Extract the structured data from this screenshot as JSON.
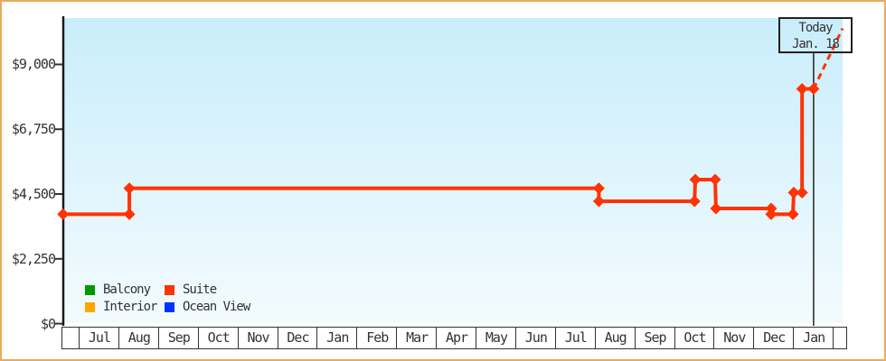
{
  "today_box": {
    "line1": "Today",
    "line2": "Jan. 18"
  },
  "legend": {
    "items": [
      {
        "label": "Balcony",
        "color": "#009900"
      },
      {
        "label": "Suite",
        "color": "#ff3300"
      },
      {
        "label": "Interior",
        "color": "#ffa500"
      },
      {
        "label": "Ocean View",
        "color": "#0033ff"
      }
    ]
  },
  "colors": {
    "frame_border": "#ebaa5c",
    "plot_bg_top": "#c9edfb",
    "plot_bg_bottom": "#f3fbfe",
    "axis": "#333333",
    "today_line": "#222222",
    "suite_line": "#ff3300"
  },
  "chart_data": {
    "type": "line",
    "grid": false,
    "legend_position": "bottom-left-inside",
    "x_axis": {
      "unit": "months (Jul of first year through Jan of second-next year)",
      "tick_labels": [
        "Jul",
        "Aug",
        "Sep",
        "Oct",
        "Nov",
        "Dec",
        "Jan",
        "Feb",
        "Mar",
        "Apr",
        "May",
        "Jun",
        "Jul",
        "Aug",
        "Sep",
        "Oct",
        "Nov",
        "Dec",
        "Jan"
      ]
    },
    "y_axis": {
      "tick_labels": [
        "$0",
        "$2,250",
        "$4,500",
        "$6,750",
        "$9,000"
      ],
      "tick_values": [
        0,
        2250,
        4500,
        6750,
        9000
      ],
      "range": [
        0,
        10600
      ]
    },
    "series": [
      {
        "name": "Suite",
        "color": "#ff3300",
        "marker": "diamond",
        "points_note": "x = months after Jul 1 of first year, y = price USD (read from chart)",
        "points": [
          [
            -0.37,
            3800
          ],
          [
            1.3,
            3800
          ],
          [
            1.3,
            4700
          ],
          [
            13.13,
            4700
          ],
          [
            13.13,
            4250
          ],
          [
            15.54,
            4250
          ],
          [
            15.56,
            5000
          ],
          [
            16.06,
            5000
          ],
          [
            16.08,
            4000
          ],
          [
            17.47,
            4000
          ],
          [
            17.47,
            3800
          ],
          [
            18.02,
            3800
          ],
          [
            18.04,
            4550
          ],
          [
            18.25,
            4550
          ],
          [
            18.25,
            8150
          ],
          [
            18.54,
            8150
          ]
        ]
      }
    ],
    "projection": {
      "style": "dashed",
      "color": "#ff3300",
      "from": [
        18.54,
        8150
      ],
      "to": [
        19.27,
        10250
      ]
    },
    "today_line": {
      "month_offset": 18.54,
      "label": "Today Jan. 18"
    },
    "series_in_legend_without_visible_data": [
      "Balcony",
      "Interior",
      "Ocean View"
    ]
  }
}
